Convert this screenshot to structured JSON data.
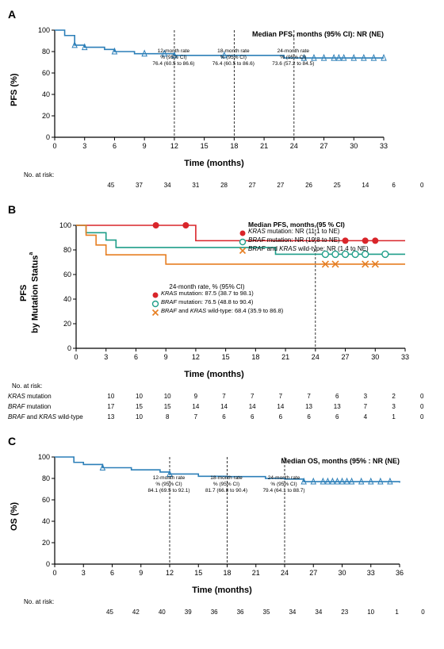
{
  "panelA": {
    "label": "A",
    "ylabel": "PFS (%)",
    "xlabel": "Time (months)",
    "type": "kaplan-meier",
    "xlim": [
      0,
      33
    ],
    "ylim": [
      0,
      100
    ],
    "xtick_step": 3,
    "ytick_step": 20,
    "line_color": "#2c7fb8",
    "axis_color": "#000000",
    "background_color": "#ffffff",
    "font_size_axis": 9,
    "median_label": "Median PFS, months (95% CI): NR (NE)",
    "vlines": [
      12,
      18,
      24
    ],
    "vline_color": "#000000",
    "boxes": [
      {
        "x": 12,
        "lines": [
          "12-month rate",
          "% (95% CI)",
          "76.4 (60.5 to 86.6)"
        ]
      },
      {
        "x": 18,
        "lines": [
          "18-month rate",
          "% (95% CI)",
          "76.4 (60.5 to 86.6)"
        ]
      },
      {
        "x": 24,
        "lines": [
          "24-month rate",
          "% (95% CI)",
          "73.6 (57.2 to 84.5)"
        ]
      }
    ],
    "series": [
      {
        "x": 0,
        "y": 100
      },
      {
        "x": 1,
        "y": 95
      },
      {
        "x": 2,
        "y": 86
      },
      {
        "x": 3,
        "y": 84
      },
      {
        "x": 5,
        "y": 82
      },
      {
        "x": 6,
        "y": 80
      },
      {
        "x": 8,
        "y": 78
      },
      {
        "x": 12,
        "y": 76.4
      },
      {
        "x": 18,
        "y": 76.4
      },
      {
        "x": 23,
        "y": 74
      },
      {
        "x": 33,
        "y": 74
      }
    ],
    "censor_x": [
      2,
      3,
      6,
      9,
      11,
      12,
      17,
      25,
      26,
      27,
      28,
      28.5,
      29,
      30,
      31,
      32,
      33
    ],
    "risk_header": "No. at risk:",
    "risk": {
      "label": "",
      "values": [
        45,
        37,
        34,
        31,
        28,
        27,
        27,
        26,
        25,
        14,
        6,
        0
      ]
    }
  },
  "panelB": {
    "label": "B",
    "ylabel_html": "PFS\nby Mutation Status",
    "ylabel_sup": "a",
    "xlabel": "Time (months)",
    "type": "kaplan-meier-grouped",
    "xlim": [
      0,
      33
    ],
    "ylim": [
      0,
      100
    ],
    "xtick_step": 3,
    "ytick_step": 20,
    "axis_color": "#000000",
    "vlines": [
      24
    ],
    "legend_title": "Median PFS, months (95 % CI)",
    "legend_items": [
      {
        "marker": "filled-circle",
        "color": "#d9252a",
        "label_html": "<i>KRAS</i> mutation: NR (11.1 to NE)"
      },
      {
        "marker": "open-circle",
        "color": "#1f9e89",
        "label_html": "<i>BRAF</i> mutation: NR (19.8 to NE)"
      },
      {
        "marker": "x",
        "color": "#e67e22",
        "label_html": "<i>BRAF</i> and <i>KRAS</i> wild-type: NR (1.4 to NE)"
      }
    ],
    "box24": {
      "title": "24-month rate, % (95% CI)",
      "rows": [
        {
          "marker": "filled-circle",
          "color": "#d9252a",
          "text_html": "<i>KRAS</i> mutation: 87.5 (38.7 to 98.1)"
        },
        {
          "marker": "open-circle",
          "color": "#1f9e89",
          "text_html": "<i>BRAF</i> mutation: 76.5 (48.8 to 90.4)"
        },
        {
          "marker": "x",
          "color": "#e67e22",
          "text_html": "<i>BRAF</i> and <i>KRAS</i> wild-type: 68.4 (35.9 to 86.8)"
        }
      ]
    },
    "series": [
      {
        "color": "#d9252a",
        "pts": [
          {
            "x": 0,
            "y": 100
          },
          {
            "x": 11,
            "y": 100
          },
          {
            "x": 12,
            "y": 87.5
          },
          {
            "x": 33,
            "y": 87.5
          }
        ],
        "marker": "filled-circle",
        "censor_x": [
          8,
          11,
          27,
          29,
          30
        ]
      },
      {
        "color": "#1f9e89",
        "pts": [
          {
            "x": 0,
            "y": 100
          },
          {
            "x": 1,
            "y": 94
          },
          {
            "x": 3,
            "y": 88
          },
          {
            "x": 4,
            "y": 82
          },
          {
            "x": 19,
            "y": 82
          },
          {
            "x": 20,
            "y": 76.5
          },
          {
            "x": 33,
            "y": 76.5
          }
        ],
        "marker": "open-circle",
        "censor_x": [
          25,
          26,
          27,
          28,
          29,
          31
        ]
      },
      {
        "color": "#e67e22",
        "pts": [
          {
            "x": 0,
            "y": 100
          },
          {
            "x": 1,
            "y": 92
          },
          {
            "x": 2,
            "y": 84
          },
          {
            "x": 3,
            "y": 76
          },
          {
            "x": 8,
            "y": 76
          },
          {
            "x": 9,
            "y": 68.4
          },
          {
            "x": 33,
            "y": 68.4
          }
        ],
        "marker": "x",
        "censor_x": [
          25,
          26,
          29,
          30
        ]
      }
    ],
    "risk_header": "No. at risk:",
    "risk_rows": [
      {
        "label_html": "<i>KRAS</i> mutation",
        "values": [
          10,
          10,
          10,
          9,
          7,
          7,
          7,
          7,
          6,
          3,
          2,
          0
        ]
      },
      {
        "label_html": "<i>BRAF</i> mutation",
        "values": [
          17,
          15,
          15,
          14,
          14,
          14,
          14,
          13,
          13,
          7,
          3,
          0
        ]
      },
      {
        "label_html": "<i>BRAF</i> and <i>KRAS</i> wild-type",
        "values": [
          13,
          10,
          8,
          7,
          6,
          6,
          6,
          6,
          6,
          4,
          1,
          0
        ]
      }
    ]
  },
  "panelC": {
    "label": "C",
    "ylabel": "OS (%)",
    "xlabel": "Time (months)",
    "type": "kaplan-meier",
    "xlim": [
      0,
      36
    ],
    "ylim": [
      0,
      100
    ],
    "xtick_step": 3,
    "ytick_step": 20,
    "line_color": "#2c7fb8",
    "axis_color": "#000000",
    "median_label": "Median OS, months (95% : NR (NE)",
    "vlines": [
      12,
      18,
      24
    ],
    "boxes": [
      {
        "x": 12,
        "lines": [
          "12-month rate",
          "% (95% CI)",
          "84.1 (69.5 to 92.1)"
        ]
      },
      {
        "x": 18,
        "lines": [
          "18-month rate",
          "% (95% CI)",
          "81.7 (66.8 to 90.4)"
        ]
      },
      {
        "x": 24,
        "lines": [
          "24-month rate",
          "% (95% CI)",
          "79.4 (64.1 to 88.7)"
        ]
      }
    ],
    "series": [
      {
        "x": 0,
        "y": 100
      },
      {
        "x": 2,
        "y": 95
      },
      {
        "x": 3,
        "y": 93
      },
      {
        "x": 5,
        "y": 90
      },
      {
        "x": 8,
        "y": 88
      },
      {
        "x": 11,
        "y": 86
      },
      {
        "x": 12,
        "y": 84.1
      },
      {
        "x": 15,
        "y": 82
      },
      {
        "x": 18,
        "y": 81.7
      },
      {
        "x": 22,
        "y": 80
      },
      {
        "x": 24,
        "y": 79.4
      },
      {
        "x": 26,
        "y": 77
      },
      {
        "x": 36,
        "y": 76
      }
    ],
    "censor_x": [
      5,
      12,
      26,
      27,
      28,
      28.5,
      29,
      29.5,
      30,
      30.5,
      31,
      32,
      33,
      34,
      35
    ],
    "risk_header": "No. at risk:",
    "risk": {
      "label": "",
      "values": [
        45,
        42,
        40,
        39,
        36,
        36,
        35,
        34,
        34,
        23,
        10,
        1,
        0
      ]
    }
  }
}
